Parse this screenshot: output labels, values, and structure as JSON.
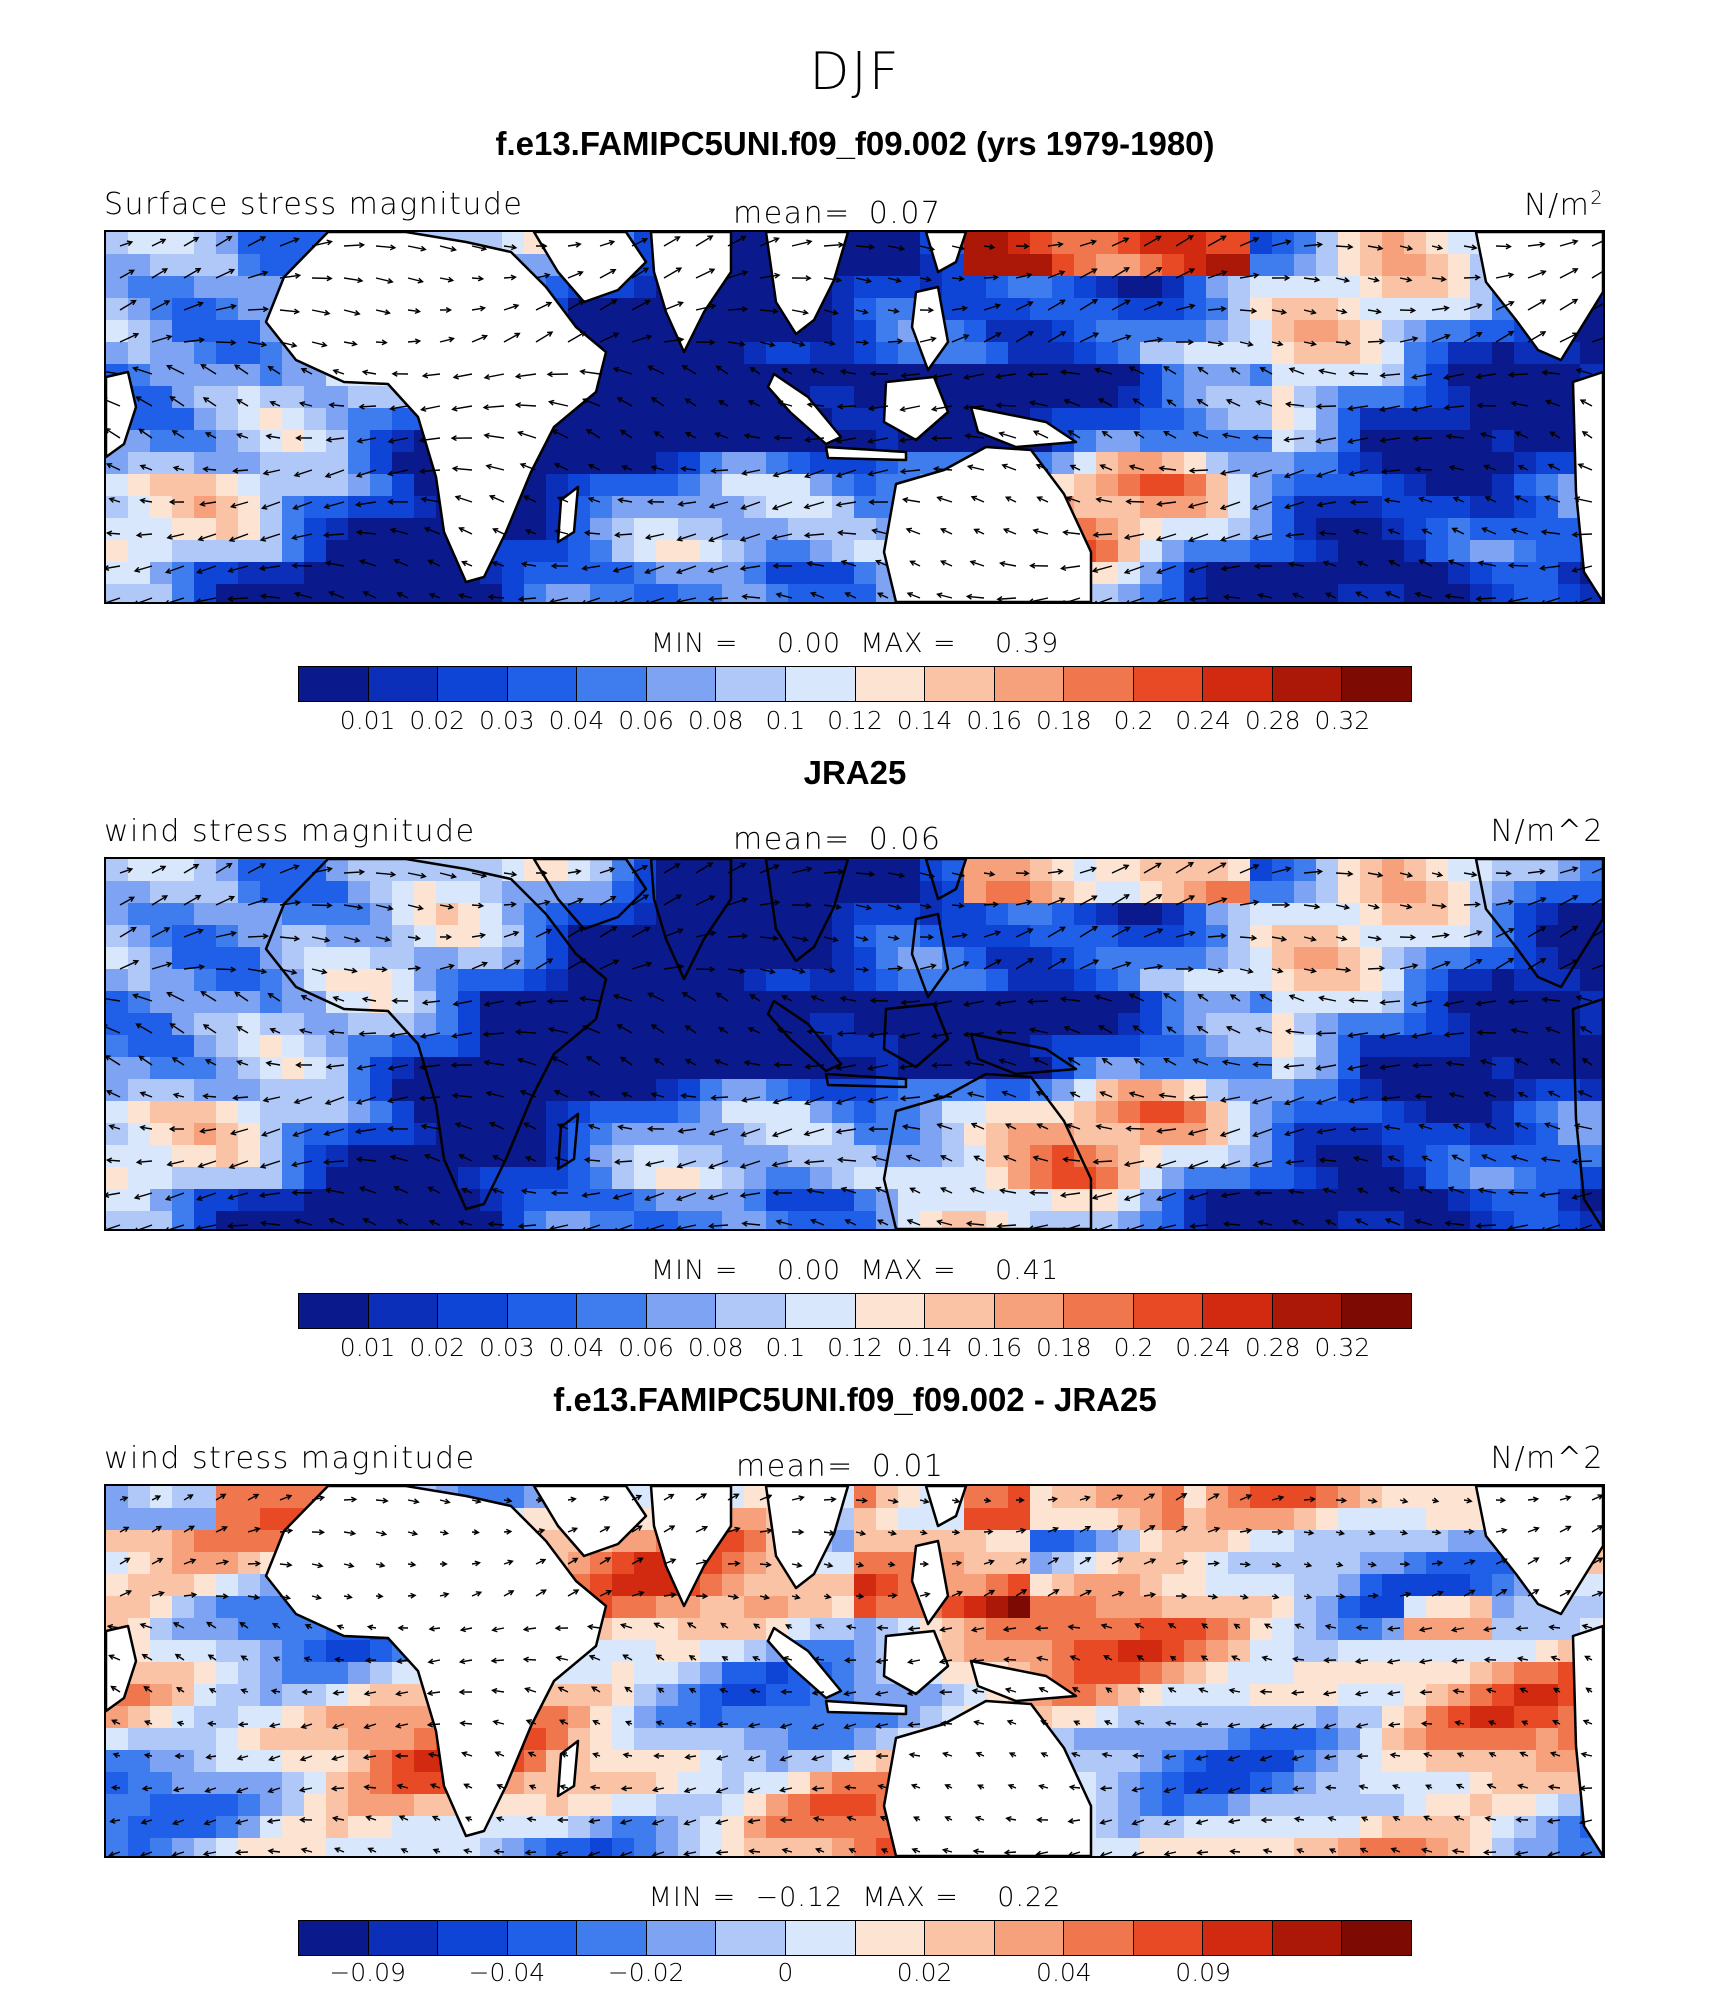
{
  "season": "DJF",
  "panels": [
    {
      "title": "f.e13.FAMIPC5UNI.f09_f09.002 (yrs 1979-1980)",
      "variable_label": "Surface stress magnitude",
      "mean_label": "mean=",
      "mean_value": "0.07",
      "units_text": "N/m",
      "units_sup": "2",
      "min_label": "MIN =",
      "min_value": "0.00",
      "max_label": "MAX =",
      "max_value": "0.39",
      "colorbar_ticks": [
        "0.01",
        "0.02",
        "0.03",
        "0.04",
        "0.06",
        "0.08",
        "0.1",
        "0.12",
        "0.14",
        "0.16",
        "0.18",
        "0.2",
        "0.24",
        "0.28",
        "0.32"
      ],
      "field": "model"
    },
    {
      "title": "JRA25",
      "variable_label": "wind stress magnitude",
      "mean_label": "mean=",
      "mean_value": "0.06",
      "units_text": "N/m^2",
      "units_sup": "",
      "min_label": "MIN =",
      "min_value": "0.00",
      "max_label": "MAX =",
      "max_value": "0.41",
      "colorbar_ticks": [
        "0.01",
        "0.02",
        "0.03",
        "0.04",
        "0.06",
        "0.08",
        "0.1",
        "0.12",
        "0.14",
        "0.16",
        "0.18",
        "0.2",
        "0.24",
        "0.28",
        "0.32"
      ],
      "field": "obs"
    },
    {
      "title": "f.e13.FAMIPC5UNI.f09_f09.002 - JRA25",
      "variable_label": "wind stress magnitude",
      "mean_label": "mean=",
      "mean_value": "0.01",
      "units_text": "N/m^2",
      "units_sup": "",
      "min_label": "MIN =",
      "min_value": "−0.12",
      "max_label": "MAX =",
      "max_value": "0.22",
      "colorbar_ticks": [
        "−0.09",
        "",
        "−0.04",
        "",
        "−0.02",
        "",
        "0",
        "",
        "0.02",
        "",
        "0.04",
        "",
        "0.09",
        ""
      ],
      "field": "diff"
    }
  ],
  "colorbar_colors": [
    "#0a1a8c",
    "#0b2fb8",
    "#0f45d6",
    "#2060e8",
    "#3f7ced",
    "#7ea3f3",
    "#b0c8f7",
    "#d8e7fb",
    "#fde4d2",
    "#fbc3a6",
    "#f7a07c",
    "#f0764e",
    "#e84a26",
    "#d22a10",
    "#ac1808",
    "#7d0b04"
  ],
  "map_colors": {
    "land": "#ffffff",
    "coast": "#000000",
    "arrow": "#000000"
  }
}
